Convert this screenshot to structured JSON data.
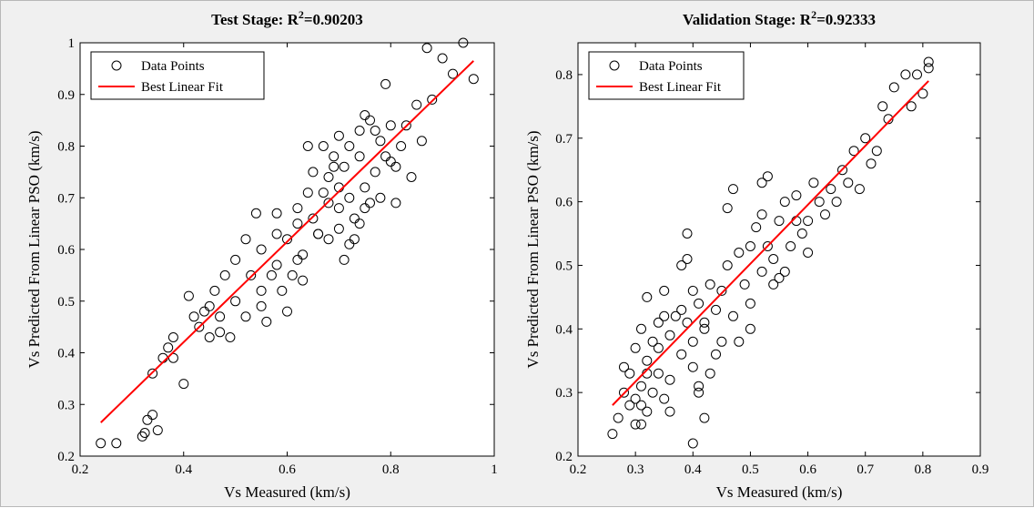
{
  "chart_data": [
    {
      "type": "scatter",
      "title": "Test Stage: R",
      "title_r2_value": "=0.90203",
      "title_superscript": "2",
      "xlabel": "Vs Measured (km/s)",
      "ylabel": "Vs Predicted From Linear PSO (km/s)",
      "xlim": [
        0.2,
        1.0
      ],
      "ylim": [
        0.2,
        1.0
      ],
      "xticks": [
        "0.2",
        "0.4",
        "0.6",
        "0.8",
        "1"
      ],
      "yticks": [
        "0.2",
        "0.3",
        "0.4",
        "0.5",
        "0.6",
        "0.7",
        "0.8",
        "0.9",
        "1"
      ],
      "grid": false,
      "legend_position": "top-left",
      "legend": [
        "Data Points",
        "Best Linear Fit"
      ],
      "fit_color": "#ff0000",
      "marker_color": "#000000",
      "series": [
        {
          "name": "Data Points",
          "x": [
            0.24,
            0.27,
            0.32,
            0.325,
            0.33,
            0.34,
            0.35,
            0.34,
            0.36,
            0.37,
            0.38,
            0.38,
            0.4,
            0.42,
            0.41,
            0.43,
            0.45,
            0.46,
            0.44,
            0.47,
            0.48,
            0.5,
            0.5,
            0.52,
            0.53,
            0.55,
            0.55,
            0.56,
            0.58,
            0.58,
            0.6,
            0.61,
            0.62,
            0.63,
            0.64,
            0.65,
            0.65,
            0.66,
            0.67,
            0.68,
            0.68,
            0.69,
            0.7,
            0.7,
            0.7,
            0.71,
            0.72,
            0.72,
            0.73,
            0.74,
            0.74,
            0.75,
            0.75,
            0.76,
            0.77,
            0.78,
            0.78,
            0.79,
            0.8,
            0.8,
            0.81,
            0.82,
            0.84,
            0.85,
            0.87,
            0.88,
            0.9,
            0.92,
            0.94,
            0.96,
            0.47,
            0.52,
            0.55,
            0.57,
            0.6,
            0.62,
            0.66,
            0.68,
            0.7,
            0.72,
            0.74,
            0.76,
            0.58,
            0.63,
            0.69,
            0.73,
            0.77,
            0.79,
            0.62,
            0.54,
            0.49,
            0.45,
            0.64,
            0.71,
            0.75,
            0.81,
            0.67,
            0.59,
            0.83,
            0.86
          ],
          "y": [
            0.225,
            0.225,
            0.238,
            0.245,
            0.27,
            0.28,
            0.25,
            0.36,
            0.39,
            0.41,
            0.43,
            0.39,
            0.34,
            0.47,
            0.51,
            0.45,
            0.43,
            0.52,
            0.48,
            0.44,
            0.55,
            0.58,
            0.5,
            0.47,
            0.55,
            0.6,
            0.52,
            0.46,
            0.57,
            0.63,
            0.62,
            0.55,
            0.68,
            0.59,
            0.71,
            0.66,
            0.75,
            0.63,
            0.8,
            0.69,
            0.74,
            0.78,
            0.82,
            0.68,
            0.72,
            0.76,
            0.7,
            0.8,
            0.66,
            0.78,
            0.83,
            0.72,
            0.68,
            0.85,
            0.75,
            0.81,
            0.7,
            0.92,
            0.77,
            0.84,
            0.69,
            0.8,
            0.74,
            0.88,
            0.99,
            0.89,
            0.97,
            0.94,
            1.0,
            0.93,
            0.47,
            0.62,
            0.49,
            0.55,
            0.48,
            0.58,
            0.63,
            0.62,
            0.64,
            0.61,
            0.65,
            0.69,
            0.67,
            0.54,
            0.76,
            0.62,
            0.83,
            0.78,
            0.65,
            0.67,
            0.43,
            0.49,
            0.8,
            0.58,
            0.86,
            0.76,
            0.71,
            0.52,
            0.84,
            0.81
          ]
        },
        {
          "name": "Best Linear Fit",
          "x": [
            0.24,
            0.96
          ],
          "y": [
            0.265,
            0.965
          ]
        }
      ]
    },
    {
      "type": "scatter",
      "title": "Validation Stage: R",
      "title_r2_value": "=0.92333",
      "title_superscript": "2",
      "xlabel": "Vs Measured (km/s)",
      "ylabel": "Vs Predicted From Linear PSO (km/s)",
      "xlim": [
        0.2,
        0.9
      ],
      "ylim": [
        0.2,
        0.85
      ],
      "xticks": [
        "0.2",
        "0.3",
        "0.4",
        "0.5",
        "0.6",
        "0.7",
        "0.8",
        "0.9"
      ],
      "yticks": [
        "0.2",
        "0.3",
        "0.4",
        "0.5",
        "0.6",
        "0.7",
        "0.8"
      ],
      "grid": false,
      "legend_position": "top-left",
      "legend": [
        "Data Points",
        "Best Linear Fit"
      ],
      "fit_color": "#ff0000",
      "marker_color": "#000000",
      "series": [
        {
          "name": "Data Points",
          "x": [
            0.26,
            0.27,
            0.28,
            0.29,
            0.29,
            0.3,
            0.3,
            0.31,
            0.31,
            0.31,
            0.32,
            0.32,
            0.32,
            0.33,
            0.33,
            0.34,
            0.34,
            0.35,
            0.35,
            0.36,
            0.36,
            0.37,
            0.38,
            0.38,
            0.39,
            0.39,
            0.4,
            0.4,
            0.41,
            0.41,
            0.42,
            0.42,
            0.43,
            0.43,
            0.44,
            0.45,
            0.45,
            0.46,
            0.47,
            0.48,
            0.49,
            0.5,
            0.5,
            0.51,
            0.52,
            0.52,
            0.53,
            0.54,
            0.55,
            0.55,
            0.56,
            0.57,
            0.58,
            0.59,
            0.6,
            0.61,
            0.62,
            0.63,
            0.64,
            0.65,
            0.66,
            0.67,
            0.68,
            0.69,
            0.7,
            0.71,
            0.72,
            0.73,
            0.74,
            0.75,
            0.77,
            0.78,
            0.79,
            0.8,
            0.81,
            0.81,
            0.3,
            0.32,
            0.34,
            0.36,
            0.38,
            0.4,
            0.42,
            0.44,
            0.46,
            0.48,
            0.5,
            0.52,
            0.54,
            0.56,
            0.58,
            0.6,
            0.28,
            0.31,
            0.35,
            0.4,
            0.39,
            0.41,
            0.47,
            0.53
          ],
          "y": [
            0.235,
            0.26,
            0.3,
            0.33,
            0.28,
            0.37,
            0.25,
            0.31,
            0.4,
            0.28,
            0.35,
            0.45,
            0.27,
            0.38,
            0.3,
            0.41,
            0.33,
            0.46,
            0.29,
            0.39,
            0.32,
            0.42,
            0.36,
            0.5,
            0.41,
            0.55,
            0.38,
            0.22,
            0.44,
            0.31,
            0.4,
            0.26,
            0.47,
            0.33,
            0.43,
            0.46,
            0.38,
            0.59,
            0.42,
            0.52,
            0.47,
            0.53,
            0.4,
            0.56,
            0.49,
            0.63,
            0.53,
            0.51,
            0.57,
            0.48,
            0.6,
            0.53,
            0.61,
            0.55,
            0.57,
            0.63,
            0.6,
            0.58,
            0.62,
            0.6,
            0.65,
            0.63,
            0.68,
            0.62,
            0.7,
            0.66,
            0.68,
            0.75,
            0.73,
            0.78,
            0.8,
            0.75,
            0.8,
            0.77,
            0.82,
            0.81,
            0.29,
            0.33,
            0.37,
            0.27,
            0.43,
            0.34,
            0.41,
            0.36,
            0.5,
            0.38,
            0.44,
            0.58,
            0.47,
            0.49,
            0.57,
            0.52,
            0.34,
            0.25,
            0.42,
            0.46,
            0.51,
            0.3,
            0.62,
            0.64
          ]
        },
        {
          "name": "Best Linear Fit",
          "x": [
            0.26,
            0.81
          ],
          "y": [
            0.28,
            0.79
          ]
        }
      ]
    }
  ]
}
